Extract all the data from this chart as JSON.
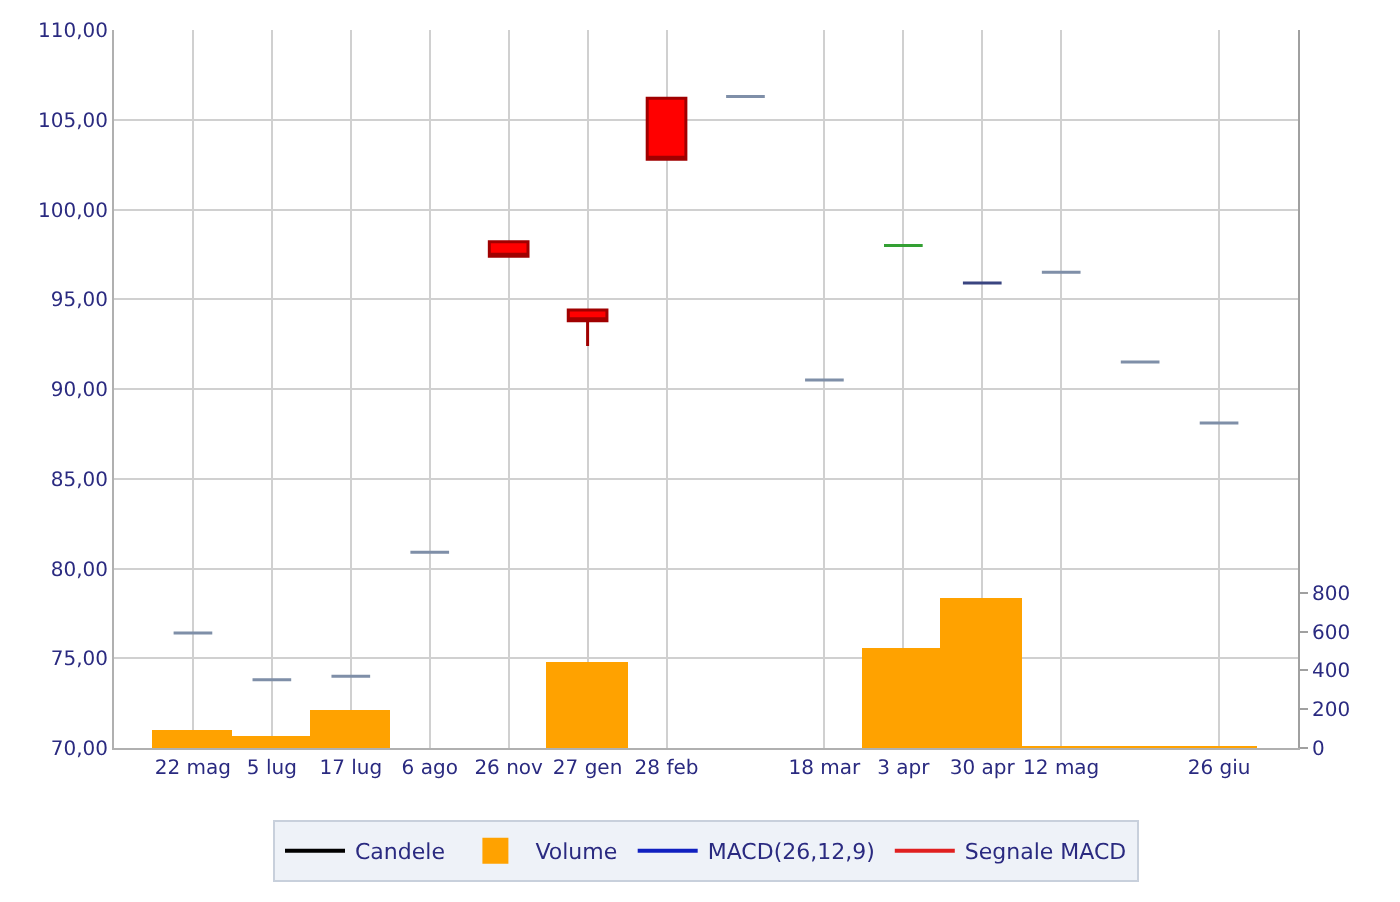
{
  "chart_data": {
    "type": "candlestick",
    "categories": [
      "22 mag",
      "5 lug",
      "17 lug",
      "6 ago",
      "26 nov",
      "27 gen",
      "28 feb",
      null,
      "18 mar",
      "3 apr",
      "30 apr",
      "12 mag",
      null,
      "26 giu"
    ],
    "series": [
      {
        "name": "Candele",
        "type": "candlestick",
        "color": "#000000",
        "ohlc": [
          [
            76.4,
            76.4,
            76.4,
            76.4
          ],
          [
            73.8,
            73.8,
            73.8,
            73.8
          ],
          [
            74.0,
            74.0,
            74.0,
            74.0
          ],
          [
            80.9,
            80.9,
            80.9,
            80.9
          ],
          [
            98.2,
            98.2,
            97.4,
            97.4
          ],
          [
            94.4,
            94.4,
            92.4,
            93.8
          ],
          [
            106.2,
            106.2,
            102.8,
            102.8
          ],
          [
            106.3,
            106.3,
            106.3,
            106.3
          ],
          [
            90.5,
            90.5,
            90.5,
            90.5
          ],
          [
            98.0,
            98.0,
            98.0,
            98.0
          ],
          [
            95.9,
            95.9,
            95.9,
            95.9
          ],
          [
            96.5,
            96.5,
            96.5,
            96.5
          ],
          [
            91.5,
            91.5,
            91.5,
            91.5
          ],
          [
            88.1,
            88.1,
            88.1,
            88.1
          ]
        ],
        "colors": [
          "#7f8fa8",
          "#7f8fa8",
          "#7f8fa8",
          "#7f8fa8",
          "#ff0000",
          "#ff0000",
          "#ff0000",
          "#7f8fa8",
          "#7f8fa8",
          "#33a033",
          "#3a4580",
          "#7f8fa8",
          "#7f8fa8",
          "#7f8fa8"
        ]
      },
      {
        "name": "Volume",
        "type": "bar",
        "axis": "y2",
        "color": "#ffa200",
        "values": [
          80,
          50,
          190,
          null,
          null,
          430,
          null,
          null,
          null,
          510,
          760,
          0,
          0,
          0
        ]
      },
      {
        "name": "MACD(26,12,9)",
        "type": "line",
        "color": "#1020c0",
        "values": [
          null,
          null,
          null,
          null,
          null,
          null,
          null,
          null,
          null,
          null,
          null,
          null,
          null,
          null
        ]
      },
      {
        "name": "Segnale MACD",
        "type": "line",
        "color": "#e02020",
        "values": [
          null,
          null,
          null,
          null,
          null,
          null,
          null,
          null,
          null,
          null,
          null,
          null,
          null,
          null
        ]
      }
    ],
    "ylim": [
      70,
      110
    ],
    "yticks": [
      {
        "value": 70,
        "label": "70,00"
      },
      {
        "value": 75,
        "label": "75,00"
      },
      {
        "value": 80,
        "label": "80,00"
      },
      {
        "value": 85,
        "label": "85,00"
      },
      {
        "value": 90,
        "label": "90,00"
      },
      {
        "value": 95,
        "label": "95,00"
      },
      {
        "value": 100,
        "label": "100,00"
      },
      {
        "value": 105,
        "label": "105,00"
      },
      {
        "value": 110,
        "label": "110,00"
      }
    ],
    "y2lim": [
      0,
      3700
    ],
    "y2ticks": [
      0,
      200,
      400,
      600,
      800
    ],
    "grid": true,
    "legend": "bottom"
  }
}
